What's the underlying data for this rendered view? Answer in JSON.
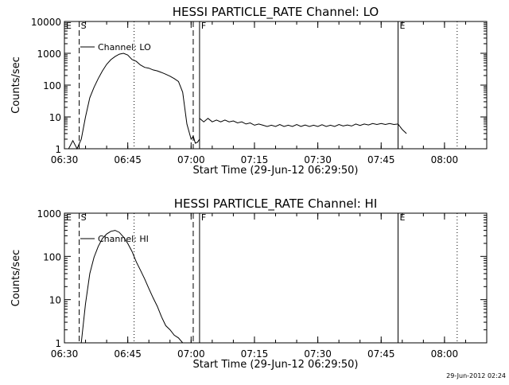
{
  "chart_data": [
    {
      "type": "line",
      "title": "HESSI PARTICLE_RATE Channel: LO",
      "xlabel": "Start Time (29-Jun-12 06:29:50)",
      "ylabel": "Counts/sec",
      "y_scale": "log",
      "ylim": [
        1,
        10000
      ],
      "xlim": [
        "06:30",
        "08:10"
      ],
      "x_ticks": [
        "06:30",
        "06:45",
        "07:00",
        "07:15",
        "07:30",
        "07:45",
        "08:00"
      ],
      "y_ticks": [
        {
          "value": 1,
          "label": "1"
        },
        {
          "value": 10,
          "label": "10"
        },
        {
          "value": 100,
          "label": "100"
        },
        {
          "value": 1000,
          "label": "1000"
        },
        {
          "value": 10000,
          "label": "10000"
        }
      ],
      "legend": {
        "label": "Channel: LO",
        "placement": "top-left"
      },
      "markers": [
        {
          "label": "E",
          "time": "06:30",
          "style": "solid"
        },
        {
          "label": "S",
          "time": "06:33.5",
          "style": "dashed"
        },
        {
          "label": "",
          "time": "06:46.5",
          "style": "dotted"
        },
        {
          "label": "",
          "time": "07:00.5",
          "style": "dashed"
        },
        {
          "label": "F",
          "time": "07:02",
          "style": "solid"
        },
        {
          "label": "E",
          "time": "07:49",
          "style": "solid"
        },
        {
          "label": "",
          "time": "08:03",
          "style": "dotted"
        }
      ],
      "series": [
        {
          "segments": [
            [
              [
                "06:30",
                1
              ],
              [
                "06:31",
                1
              ],
              [
                "06:32",
                1.8
              ],
              [
                "06:33",
                1
              ],
              [
                "06:34",
                2
              ],
              [
                "06:35",
                10
              ],
              [
                "06:36",
                40
              ],
              [
                "06:37",
                85
              ],
              [
                "06:38",
                160
              ],
              [
                "06:39",
                280
              ],
              [
                "06:40",
                450
              ],
              [
                "06:41",
                630
              ],
              [
                "06:42",
                790
              ],
              [
                "06:43",
                940
              ],
              [
                "06:44",
                1000
              ],
              [
                "06:45",
                880
              ],
              [
                "06:46",
                640
              ],
              [
                "06:47",
                560
              ],
              [
                "06:48",
                430
              ],
              [
                "06:49",
                360
              ],
              [
                "06:50",
                340
              ],
              [
                "06:51",
                300
              ],
              [
                "06:52",
                280
              ],
              [
                "06:53",
                250
              ],
              [
                "06:54",
                220
              ],
              [
                "06:55",
                190
              ],
              [
                "06:56",
                160
              ],
              [
                "06:57",
                130
              ],
              [
                "06:58",
                60
              ],
              [
                "06:59",
                6
              ],
              [
                "07:00",
                2
              ],
              [
                "07:00.5",
                2.5
              ],
              [
                "07:01",
                1.5
              ],
              [
                "07:01.5",
                1.6
              ],
              [
                "07:02",
                2
              ]
            ],
            [
              [
                "07:02",
                9
              ],
              [
                "07:03",
                7
              ],
              [
                "07:04",
                9
              ],
              [
                "07:05",
                7
              ],
              [
                "07:06",
                8
              ],
              [
                "07:07",
                7
              ],
              [
                "07:08",
                8
              ],
              [
                "07:09",
                7
              ],
              [
                "07:10",
                7.5
              ],
              [
                "07:11",
                6.5
              ],
              [
                "07:12",
                7
              ],
              [
                "07:13",
                6
              ],
              [
                "07:14",
                6.5
              ],
              [
                "07:15",
                5.5
              ],
              [
                "07:16",
                6
              ],
              [
                "07:17",
                5.5
              ],
              [
                "07:18",
                5
              ],
              [
                "07:19",
                5.5
              ],
              [
                "07:20",
                5
              ],
              [
                "07:21",
                5.8
              ],
              [
                "07:22",
                5
              ],
              [
                "07:23",
                5.5
              ],
              [
                "07:24",
                5
              ],
              [
                "07:25",
                5.8
              ],
              [
                "07:26",
                5
              ],
              [
                "07:27",
                5.6
              ],
              [
                "07:28",
                5
              ],
              [
                "07:29",
                5.5
              ],
              [
                "07:30",
                5
              ],
              [
                "07:31",
                5.7
              ],
              [
                "07:32",
                5
              ],
              [
                "07:33",
                5.5
              ],
              [
                "07:34",
                5
              ],
              [
                "07:35",
                5.8
              ],
              [
                "07:36",
                5.2
              ],
              [
                "07:37",
                5.6
              ],
              [
                "07:38",
                5.2
              ],
              [
                "07:39",
                6
              ],
              [
                "07:40",
                5.4
              ],
              [
                "07:41",
                6
              ],
              [
                "07:42",
                5.6
              ],
              [
                "07:43",
                6.2
              ],
              [
                "07:44",
                5.8
              ],
              [
                "07:45",
                6.2
              ],
              [
                "07:46",
                5.8
              ],
              [
                "07:47",
                6.2
              ],
              [
                "07:48",
                5.8
              ],
              [
                "07:49",
                6
              ],
              [
                "07:50",
                4
              ],
              [
                "07:51",
                3
              ]
            ]
          ]
        }
      ]
    },
    {
      "type": "line",
      "title": "HESSI PARTICLE_RATE Channel: HI",
      "xlabel": "Start Time (29-Jun-12 06:29:50)",
      "ylabel": "Counts/sec",
      "y_scale": "log",
      "ylim": [
        1,
        1000
      ],
      "xlim": [
        "06:30",
        "08:10"
      ],
      "x_ticks": [
        "06:30",
        "06:45",
        "07:00",
        "07:15",
        "07:30",
        "07:45",
        "08:00"
      ],
      "y_ticks": [
        {
          "value": 1,
          "label": "1"
        },
        {
          "value": 10,
          "label": "10"
        },
        {
          "value": 100,
          "label": "100"
        },
        {
          "value": 1000,
          "label": "1000"
        }
      ],
      "legend": {
        "label": "Channel: HI",
        "placement": "top-left"
      },
      "markers": [
        {
          "label": "E",
          "time": "06:30",
          "style": "solid"
        },
        {
          "label": "S",
          "time": "06:33.5",
          "style": "dashed"
        },
        {
          "label": "",
          "time": "06:46.5",
          "style": "dotted"
        },
        {
          "label": "",
          "time": "07:00.5",
          "style": "dashed"
        },
        {
          "label": "F",
          "time": "07:02",
          "style": "solid"
        },
        {
          "label": "E",
          "time": "07:49",
          "style": "solid"
        },
        {
          "label": "",
          "time": "08:03",
          "style": "dotted"
        }
      ],
      "series": [
        {
          "segments": [
            [
              [
                "06:34",
                1
              ],
              [
                "06:35",
                8
              ],
              [
                "06:36",
                40
              ],
              [
                "06:37",
                95
              ],
              [
                "06:38",
                170
              ],
              [
                "06:39",
                260
              ],
              [
                "06:40",
                330
              ],
              [
                "06:41",
                380
              ],
              [
                "06:42",
                400
              ],
              [
                "06:43",
                360
              ],
              [
                "06:44",
                280
              ],
              [
                "06:45",
                200
              ],
              [
                "06:46",
                130
              ],
              [
                "06:47",
                75
              ],
              [
                "06:48",
                48
              ],
              [
                "06:49",
                30
              ],
              [
                "06:50",
                18
              ],
              [
                "06:51",
                11
              ],
              [
                "06:52",
                7
              ],
              [
                "06:53",
                4
              ],
              [
                "06:54",
                2.5
              ],
              [
                "06:55",
                2
              ],
              [
                "06:56",
                1.5
              ],
              [
                "06:57",
                1.3
              ],
              [
                "06:58",
                1
              ]
            ]
          ]
        }
      ]
    }
  ],
  "timestamp": "29-Jun-2012 02:24",
  "colors": {
    "background": "#ffffff",
    "foreground": "#000000"
  }
}
